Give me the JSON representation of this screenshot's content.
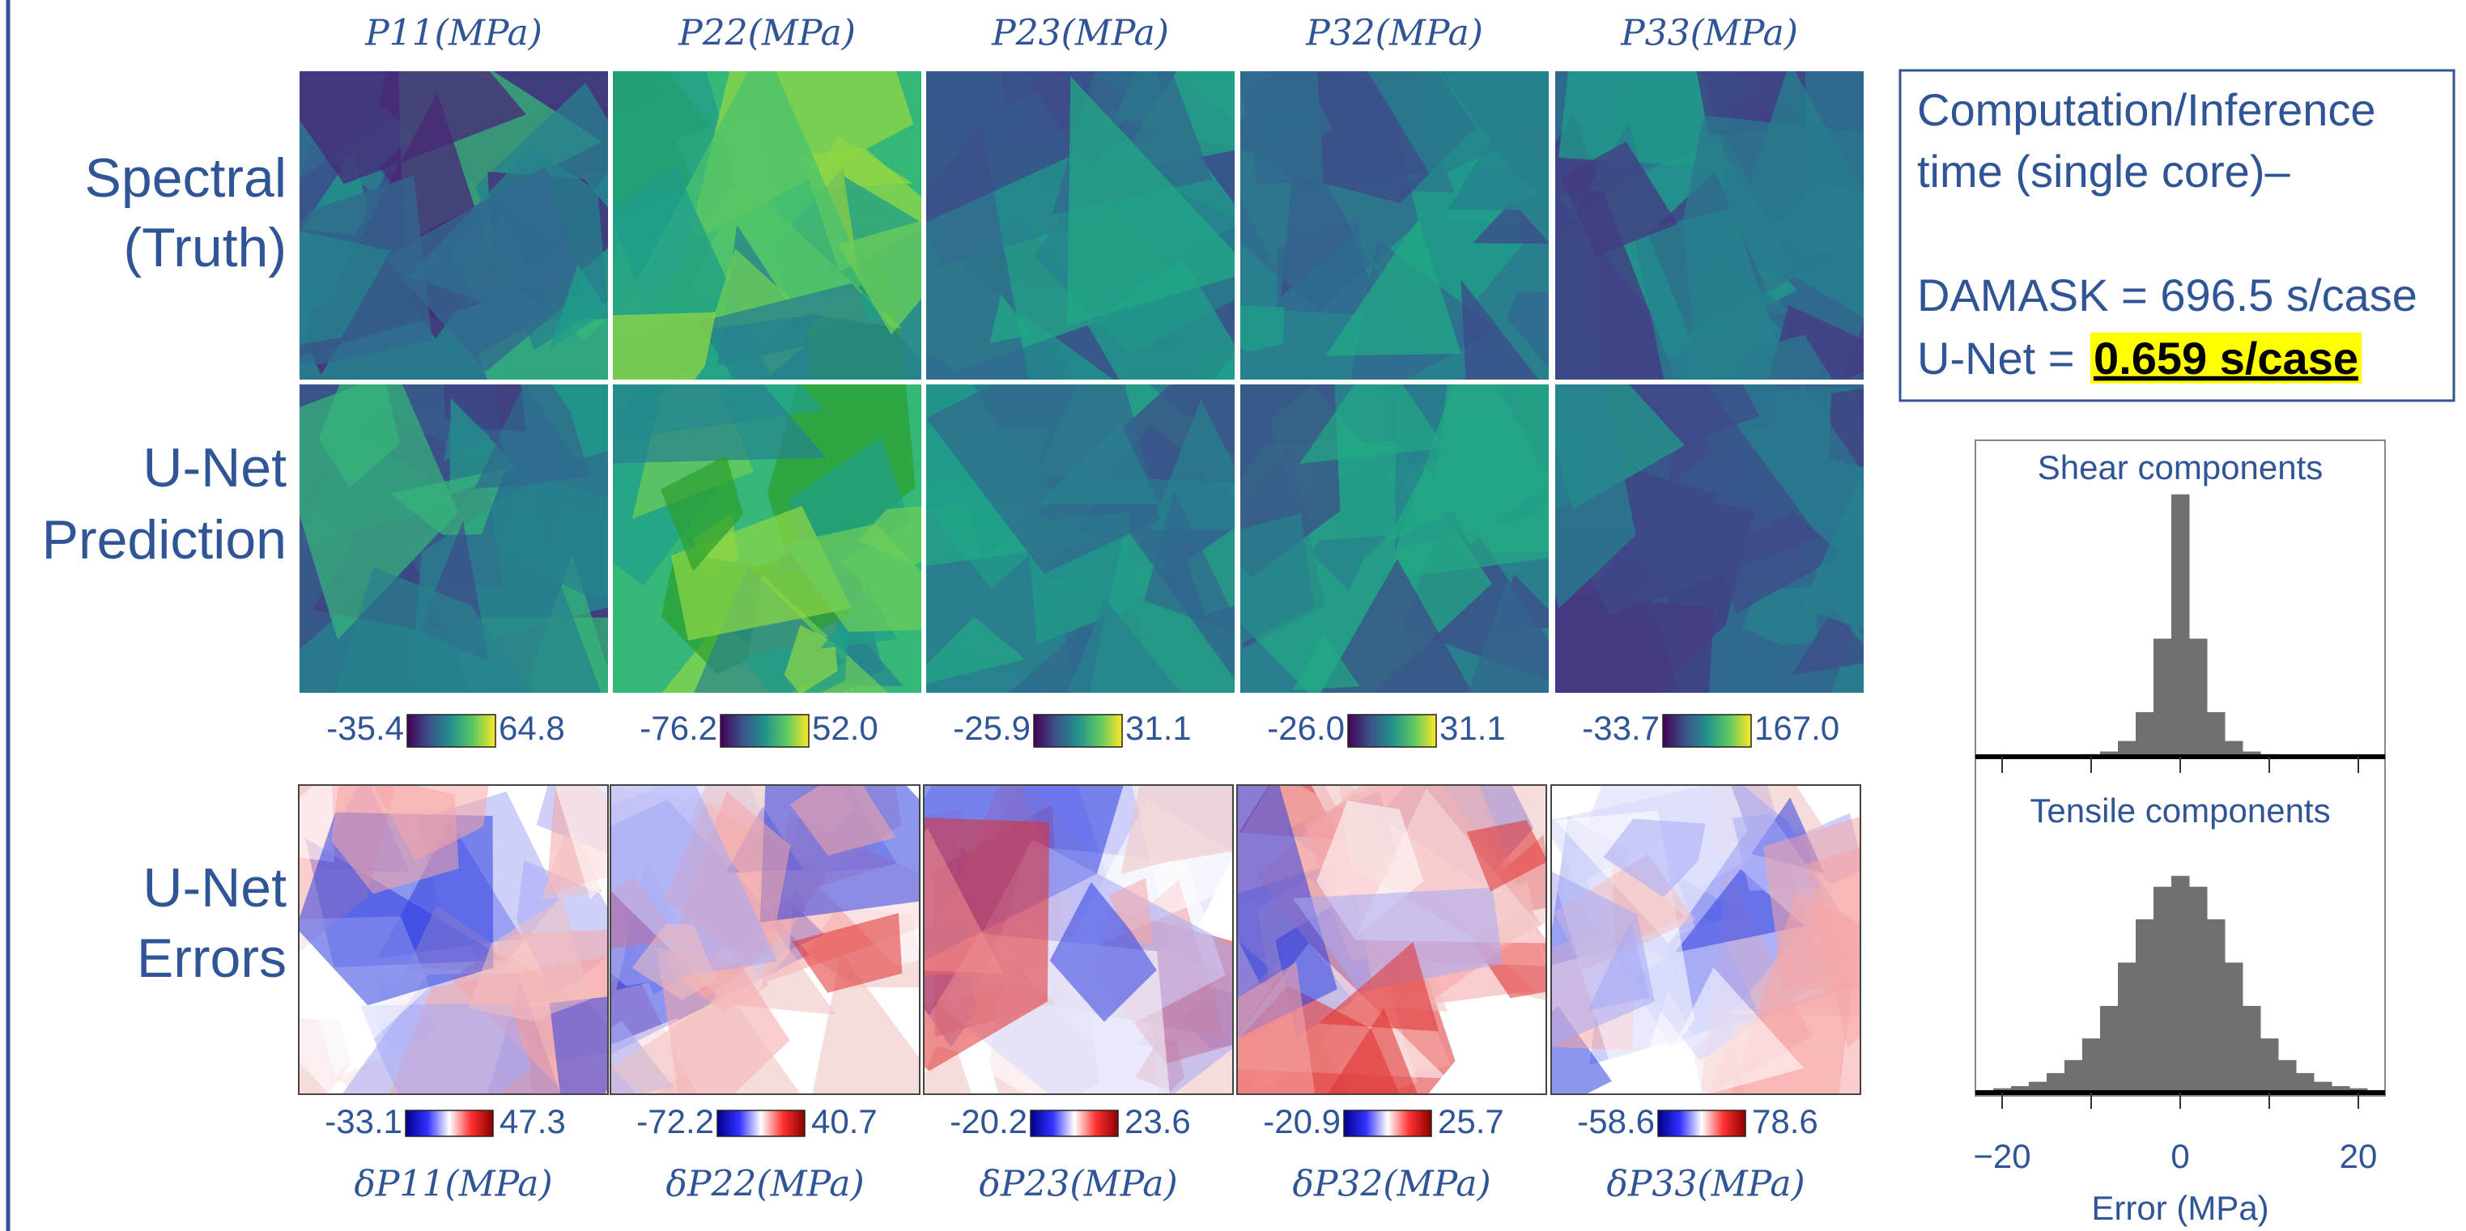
{
  "columns": [
    "P11(MPa)",
    "P22(MPa)",
    "P23(MPa)",
    "P32(MPa)",
    "P33(MPa)"
  ],
  "row_labels": [
    [
      "Spectral",
      "(Truth)"
    ],
    [
      "U-Net",
      "Prediction"
    ],
    [
      "U-Net",
      "Errors"
    ]
  ],
  "colorbars": [
    {
      "min": "-35.4",
      "max": "64.8"
    },
    {
      "min": "-76.2",
      "max": "52.0"
    },
    {
      "min": "-25.9",
      "max": "31.1"
    },
    {
      "min": "-26.0",
      "max": "31.1"
    },
    {
      "min": "-33.7",
      "max": "167.0"
    }
  ],
  "error_colorbars": [
    {
      "min": "-33.1",
      "max": "47.3"
    },
    {
      "min": "-72.2",
      "max": "40.7"
    },
    {
      "min": "-20.2",
      "max": "23.6"
    },
    {
      "min": "-20.9",
      "max": "25.7"
    },
    {
      "min": "-58.6",
      "max": "78.6"
    }
  ],
  "error_labels": [
    "δP11(MPa)",
    "δP22(MPa)",
    "δP23(MPa)",
    "δP32(MPa)",
    "δP33(MPa)"
  ],
  "info_box": {
    "lines": [
      "Computation/Inference",
      "time (single core)–",
      "DAMASK  = 696.5 s/case",
      "U-Net = "
    ],
    "highlight": "0.659 s/case"
  },
  "histograms": {
    "x_label": "Error (MPa)",
    "xlim": [
      -23,
      23
    ],
    "xticks": [
      {
        "value": -20,
        "label": "−20"
      },
      0,
      20
    ],
    "xminorticks": [
      -10,
      10
    ],
    "bins": [
      -23,
      -21,
      -19,
      -17,
      -15,
      -13,
      -11,
      -9,
      -7,
      -5,
      -3,
      -1,
      1,
      3,
      5,
      7,
      9,
      11,
      13,
      15,
      17,
      19,
      21,
      23
    ],
    "panels": [
      {
        "title": "Shear components",
        "color": "#707070",
        "ylim": [
          0,
          120
        ],
        "counts": [
          0,
          0,
          0,
          0,
          0,
          0,
          1,
          2,
          6,
          17,
          45,
          100,
          45,
          17,
          6,
          2,
          1,
          0,
          0,
          0,
          0,
          0,
          0
        ]
      },
      {
        "title": "Tensile components",
        "color": "#707070",
        "ylim": [
          0,
          155
        ],
        "counts": [
          1,
          2,
          3,
          5,
          9,
          15,
          25,
          40,
          60,
          80,
          95,
          100,
          95,
          80,
          60,
          40,
          25,
          15,
          9,
          5,
          3,
          2,
          1
        ]
      }
    ]
  }
}
